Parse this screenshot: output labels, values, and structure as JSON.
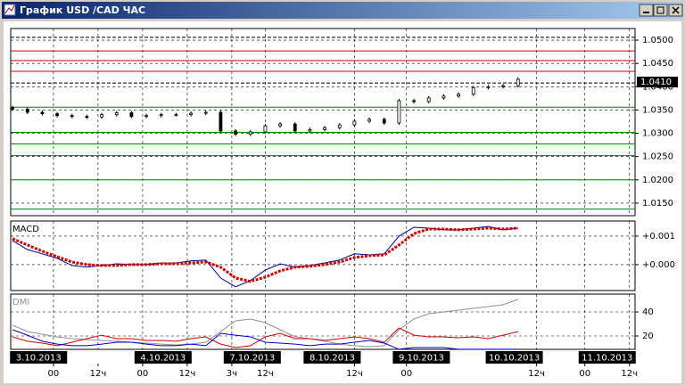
{
  "window": {
    "title": "График USD /CAD  ЧАС"
  },
  "chart_data": [
    {
      "type": "candlestick",
      "color": "#000000",
      "x": [
        -11,
        -7,
        -3,
        1,
        5,
        9,
        13,
        17,
        21,
        25,
        29,
        33,
        37,
        41,
        45,
        49,
        53,
        57,
        61,
        65,
        69,
        73,
        77,
        81,
        85,
        89,
        93,
        97,
        101,
        105,
        109,
        113,
        117,
        121,
        125
      ],
      "open": [
        1.0355,
        1.0352,
        1.0345,
        1.0342,
        1.0338,
        1.0336,
        1.0335,
        1.034,
        1.0344,
        1.0336,
        1.0338,
        1.034,
        1.034,
        1.0343,
        1.0345,
        1.0305,
        1.0298,
        1.0303,
        1.0316,
        1.032,
        1.0305,
        1.0308,
        1.0312,
        1.0318,
        1.0326,
        1.033,
        1.0322,
        1.037,
        1.0368,
        1.0376,
        1.038,
        1.0384,
        1.0398,
        1.04,
        1.0402
      ],
      "high": [
        1.0359,
        1.0356,
        1.0349,
        1.0346,
        1.0342,
        1.034,
        1.0344,
        1.0348,
        1.0348,
        1.0342,
        1.0344,
        1.0344,
        1.0347,
        1.0349,
        1.0349,
        1.0309,
        1.0307,
        1.032,
        1.0324,
        1.0324,
        1.0312,
        1.0316,
        1.0322,
        1.033,
        1.0334,
        1.0334,
        1.0374,
        1.0374,
        1.038,
        1.0384,
        1.0388,
        1.0402,
        1.0404,
        1.0406,
        1.042
      ],
      "low": [
        1.0348,
        1.0341,
        1.0338,
        1.0334,
        1.0332,
        1.0331,
        1.0331,
        1.0336,
        1.0332,
        1.0332,
        1.0334,
        1.0336,
        1.0336,
        1.0339,
        1.0301,
        1.0294,
        1.0294,
        1.0299,
        1.0312,
        1.0301,
        1.0301,
        1.0304,
        1.0308,
        1.0314,
        1.0322,
        1.0318,
        1.0318,
        1.0364,
        1.0364,
        1.0372,
        1.0376,
        1.038,
        1.0394,
        1.0396,
        1.0398
      ],
      "close": [
        1.0352,
        1.0345,
        1.0342,
        1.0338,
        1.0336,
        1.0335,
        1.034,
        1.0344,
        1.0336,
        1.0338,
        1.034,
        1.034,
        1.0343,
        1.0345,
        1.0305,
        1.0298,
        1.0303,
        1.0316,
        1.032,
        1.0305,
        1.0308,
        1.0312,
        1.0318,
        1.0326,
        1.033,
        1.0322,
        1.037,
        1.0368,
        1.0376,
        1.038,
        1.0384,
        1.0398,
        1.04,
        1.0402,
        1.0416
      ],
      "xlim": [
        -11.5,
        156.5
      ],
      "ylim": [
        1.0123,
        1.0525
      ],
      "yticks": [
        {
          "value": 1.05,
          "label": "1.0500"
        },
        {
          "value": 1.045,
          "label": "1.0450"
        },
        {
          "value": 1.04,
          "label": "1.0400"
        },
        {
          "value": 1.035,
          "label": "1.0350"
        },
        {
          "value": 1.03,
          "label": "1.0300"
        },
        {
          "value": 1.025,
          "label": "1.0250"
        },
        {
          "value": 1.02,
          "label": "1.0200"
        },
        {
          "value": 1.015,
          "label": "1.0150"
        }
      ],
      "current_price": {
        "value": 1.041,
        "label": "1.0410"
      },
      "levels": [
        {
          "value": 1.0506,
          "color": "#000000",
          "style": "dashed"
        },
        {
          "value": 1.0477,
          "color": "#c00000",
          "style": "solid"
        },
        {
          "value": 1.0456,
          "color": "#c00000",
          "style": "solid"
        },
        {
          "value": 1.0433,
          "color": "#c00000",
          "style": "solid"
        },
        {
          "value": 1.0408,
          "color": "#000000",
          "style": "dashed"
        },
        {
          "value": 1.0356,
          "color": "#008000",
          "style": "solid"
        },
        {
          "value": 1.0302,
          "color": "#008000",
          "style": "solid"
        },
        {
          "value": 1.0277,
          "color": "#008000",
          "style": "solid"
        },
        {
          "value": 1.0252,
          "color": "#008000",
          "style": "solid"
        },
        {
          "value": 1.02,
          "color": "#008000",
          "style": "solid"
        },
        {
          "value": 1.0137,
          "color": "#008000",
          "style": "solid"
        }
      ]
    },
    {
      "type": "line",
      "title": "MACD",
      "x": [
        -11,
        -7,
        -3,
        1,
        5,
        9,
        13,
        17,
        21,
        25,
        29,
        33,
        37,
        41,
        45,
        49,
        53,
        57,
        61,
        65,
        69,
        73,
        77,
        81,
        85,
        89,
        93,
        97,
        101,
        105,
        109,
        113,
        117,
        121,
        125
      ],
      "series": [
        {
          "color": "#00008b",
          "style": "solid",
          "values": [
            0.00084,
            0.00053,
            0.00038,
            0.00022,
            -3e-05,
            -9e-05,
            -3e-05,
            3e-05,
            0,
            0,
            6e-05,
            6e-05,
            0.00013,
            0.00016,
            -0.00047,
            -0.00078,
            -0.00056,
            -0.00019,
            3e-05,
            -9e-05,
            -3e-05,
            6e-05,
            0.00016,
            0.00038,
            0.00034,
            0.00038,
            0.001,
            0.00131,
            0.00128,
            0.00122,
            0.00122,
            0.00128,
            0.00134,
            0.00122,
            0.00128
          ]
        },
        {
          "color": "#d00000",
          "style": "dotted",
          "values": [
            0.00091,
            0.00069,
            0.00047,
            0.00028,
            9e-05,
            0,
            -3e-05,
            -3e-05,
            0,
            0,
            3e-05,
            3e-05,
            6e-05,
            9e-05,
            -9e-05,
            -0.00047,
            -0.00059,
            -0.00044,
            -0.00022,
            -9e-05,
            -6e-05,
            0,
            9e-05,
            0.00025,
            0.00031,
            0.00034,
            0.00069,
            0.00109,
            0.00125,
            0.00125,
            0.00122,
            0.00125,
            0.00128,
            0.00125,
            0.00128
          ]
        }
      ],
      "xlim": [
        -11.5,
        156.5
      ],
      "ylim": [
        -0.00091,
        0.00153
      ],
      "yticks": [
        {
          "value": 0.001,
          "label": "+0.001"
        },
        {
          "value": 0,
          "label": "+0.000"
        }
      ]
    },
    {
      "type": "line",
      "title": "DMI",
      "x": [
        -11,
        -7,
        -3,
        1,
        5,
        9,
        13,
        17,
        21,
        25,
        29,
        33,
        37,
        41,
        45,
        49,
        53,
        57,
        61,
        65,
        69,
        73,
        77,
        81,
        85,
        89,
        93,
        97,
        101,
        105,
        109,
        113,
        117,
        121,
        125
      ],
      "series": [
        {
          "color": "#909090",
          "style": "solid",
          "values": [
            28.9,
            23.7,
            21.5,
            19.3,
            17.8,
            17.0,
            16.3,
            15.6,
            14.8,
            14.1,
            13.3,
            12.6,
            13.3,
            14.8,
            23.7,
            32.6,
            34.1,
            31.1,
            25.2,
            19.3,
            17.8,
            15.6,
            13.3,
            11.9,
            11.1,
            11.9,
            25.2,
            34.1,
            38.5,
            40,
            41.5,
            43,
            44.4,
            45.9,
            50.4
          ]
        },
        {
          "color": "#d00000",
          "style": "solid",
          "values": [
            19.3,
            15.6,
            14.1,
            11.9,
            14.8,
            17.8,
            20.7,
            17.8,
            17.8,
            16.3,
            16.3,
            15.6,
            17.8,
            19.3,
            13.3,
            10.4,
            11.9,
            19.3,
            22.2,
            17.8,
            17.8,
            16.3,
            17.8,
            19.3,
            17.8,
            14.8,
            26.7,
            20.7,
            19.3,
            19.3,
            18.5,
            19.3,
            17.8,
            20.7,
            23.7
          ]
        },
        {
          "color": "#0000c0",
          "style": "solid",
          "values": [
            25.2,
            20.7,
            15.6,
            13.3,
            11.9,
            11.9,
            13.3,
            14.8,
            14.8,
            13.3,
            11.9,
            11.9,
            13.3,
            11.9,
            22.2,
            20.7,
            19.3,
            14.8,
            14.1,
            13.3,
            11.9,
            13.3,
            13.3,
            14.8,
            16.3,
            14.1,
            9,
            10.4,
            10.4,
            10.4,
            9,
            9,
            9,
            9,
            9
          ]
        }
      ],
      "xlim": [
        -11.5,
        156.5
      ],
      "ylim": [
        8.9,
        54.8
      ],
      "yticks": [
        40,
        20
      ],
      "xticks": [
        {
          "value": 0,
          "label": "00"
        },
        {
          "value": 12,
          "label": "12ч"
        },
        {
          "value": 24,
          "label": "00"
        },
        {
          "value": 36,
          "label": "12ч"
        },
        {
          "value": 48,
          "label": "3ч"
        },
        {
          "value": 57,
          "label": "12ч"
        },
        {
          "value": 81,
          "label": "12ч"
        },
        {
          "value": 95,
          "label": "00"
        },
        {
          "value": 130,
          "label": "12ч"
        },
        {
          "value": 143,
          "label": "00"
        },
        {
          "value": 155,
          "label": "12ч"
        }
      ],
      "date_ticks": [
        {
          "value": -4,
          "label": "3.10.2013"
        },
        {
          "value": 29.5,
          "label": "4.10.2013"
        },
        {
          "value": 53.5,
          "label": "7.10.2013"
        },
        {
          "value": 75,
          "label": "8.10.2013"
        },
        {
          "value": 99,
          "label": "9.10.2013"
        },
        {
          "value": 124,
          "label": "10.10.2013"
        },
        {
          "value": 149,
          "label": "11.10.2013"
        }
      ]
    }
  ]
}
